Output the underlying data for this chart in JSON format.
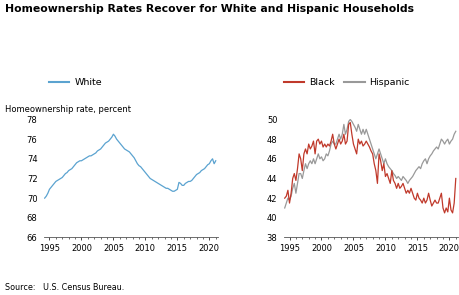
{
  "title": "Homeownership Rates Recover for White and Hispanic Households",
  "ylabel": "Homeownership rate, percent",
  "source": "Source:   U.S. Census Bureau.",
  "white_color": "#5BA3D0",
  "black_color": "#C0392B",
  "hispanic_color": "#999999",
  "left_ylim": [
    66,
    78
  ],
  "right_ylim": [
    38,
    50
  ],
  "left_yticks": [
    66,
    68,
    70,
    72,
    74,
    76,
    78
  ],
  "right_yticks": [
    38,
    40,
    42,
    44,
    46,
    48,
    50
  ],
  "xticks": [
    1995,
    2000,
    2005,
    2010,
    2015,
    2020
  ],
  "white_data": {
    "years": [
      1994.25,
      1994.5,
      1994.75,
      1995.0,
      1995.25,
      1995.5,
      1995.75,
      1996.0,
      1996.25,
      1996.5,
      1996.75,
      1997.0,
      1997.25,
      1997.5,
      1997.75,
      1998.0,
      1998.25,
      1998.5,
      1998.75,
      1999.0,
      1999.25,
      1999.5,
      1999.75,
      2000.0,
      2000.25,
      2000.5,
      2000.75,
      2001.0,
      2001.25,
      2001.5,
      2001.75,
      2002.0,
      2002.25,
      2002.5,
      2002.75,
      2003.0,
      2003.25,
      2003.5,
      2003.75,
      2004.0,
      2004.25,
      2004.5,
      2004.75,
      2005.0,
      2005.25,
      2005.5,
      2005.75,
      2006.0,
      2006.25,
      2006.5,
      2006.75,
      2007.0,
      2007.25,
      2007.5,
      2007.75,
      2008.0,
      2008.25,
      2008.5,
      2008.75,
      2009.0,
      2009.25,
      2009.5,
      2009.75,
      2010.0,
      2010.25,
      2010.5,
      2010.75,
      2011.0,
      2011.25,
      2011.5,
      2011.75,
      2012.0,
      2012.25,
      2012.5,
      2012.75,
      2013.0,
      2013.25,
      2013.5,
      2013.75,
      2014.0,
      2014.25,
      2014.5,
      2014.75,
      2015.0,
      2015.25,
      2015.5,
      2015.75,
      2016.0,
      2016.25,
      2016.5,
      2016.75,
      2017.0,
      2017.25,
      2017.5,
      2017.75,
      2018.0,
      2018.25,
      2018.5,
      2018.75,
      2019.0,
      2019.25,
      2019.5,
      2019.75,
      2020.0,
      2020.25,
      2020.5,
      2020.75,
      2021.0
    ],
    "values": [
      70.0,
      70.2,
      70.5,
      70.9,
      71.1,
      71.3,
      71.5,
      71.7,
      71.8,
      71.9,
      72.0,
      72.1,
      72.3,
      72.5,
      72.6,
      72.8,
      72.9,
      73.0,
      73.2,
      73.4,
      73.6,
      73.7,
      73.8,
      73.8,
      73.9,
      74.0,
      74.1,
      74.2,
      74.3,
      74.3,
      74.4,
      74.5,
      74.6,
      74.8,
      74.9,
      75.0,
      75.2,
      75.4,
      75.6,
      75.7,
      75.8,
      76.0,
      76.2,
      76.5,
      76.3,
      76.0,
      75.8,
      75.6,
      75.4,
      75.2,
      75.0,
      74.9,
      74.8,
      74.7,
      74.5,
      74.3,
      74.1,
      73.8,
      73.5,
      73.3,
      73.2,
      73.0,
      72.8,
      72.6,
      72.4,
      72.2,
      72.0,
      71.9,
      71.8,
      71.7,
      71.6,
      71.5,
      71.4,
      71.3,
      71.2,
      71.1,
      71.0,
      71.0,
      70.9,
      70.8,
      70.7,
      70.7,
      70.8,
      70.9,
      71.6,
      71.5,
      71.3,
      71.3,
      71.5,
      71.6,
      71.7,
      71.7,
      71.8,
      72.0,
      72.2,
      72.4,
      72.5,
      72.6,
      72.8,
      72.9,
      73.0,
      73.2,
      73.4,
      73.5,
      73.8,
      74.0,
      73.5,
      73.8
    ]
  },
  "black_data": {
    "years": [
      1994.25,
      1994.5,
      1994.75,
      1995.0,
      1995.25,
      1995.5,
      1995.75,
      1996.0,
      1996.25,
      1996.5,
      1996.75,
      1997.0,
      1997.25,
      1997.5,
      1997.75,
      1998.0,
      1998.25,
      1998.5,
      1998.75,
      1999.0,
      1999.25,
      1999.5,
      1999.75,
      2000.0,
      2000.25,
      2000.5,
      2000.75,
      2001.0,
      2001.25,
      2001.5,
      2001.75,
      2002.0,
      2002.25,
      2002.5,
      2002.75,
      2003.0,
      2003.25,
      2003.5,
      2003.75,
      2004.0,
      2004.25,
      2004.5,
      2004.75,
      2005.0,
      2005.25,
      2005.5,
      2005.75,
      2006.0,
      2006.25,
      2006.5,
      2006.75,
      2007.0,
      2007.25,
      2007.5,
      2007.75,
      2008.0,
      2008.25,
      2008.5,
      2008.75,
      2009.0,
      2009.25,
      2009.5,
      2009.75,
      2010.0,
      2010.25,
      2010.5,
      2010.75,
      2011.0,
      2011.25,
      2011.5,
      2011.75,
      2012.0,
      2012.25,
      2012.5,
      2012.75,
      2013.0,
      2013.25,
      2013.5,
      2013.75,
      2014.0,
      2014.25,
      2014.5,
      2014.75,
      2015.0,
      2015.25,
      2015.5,
      2015.75,
      2016.0,
      2016.25,
      2016.5,
      2016.75,
      2017.0,
      2017.25,
      2017.5,
      2017.75,
      2018.0,
      2018.25,
      2018.5,
      2018.75,
      2019.0,
      2019.25,
      2019.5,
      2019.75,
      2020.0,
      2020.25,
      2020.5,
      2020.75,
      2021.0
    ],
    "values": [
      42.0,
      42.2,
      42.8,
      41.5,
      42.5,
      44.0,
      44.5,
      43.8,
      45.0,
      46.5,
      46.0,
      44.8,
      46.5,
      47.0,
      46.5,
      47.5,
      47.0,
      47.3,
      47.8,
      46.5,
      47.8,
      48.0,
      47.5,
      47.8,
      47.2,
      47.5,
      47.2,
      47.5,
      47.3,
      47.8,
      48.5,
      47.5,
      47.0,
      47.5,
      48.0,
      47.5,
      47.8,
      48.5,
      47.5,
      47.8,
      49.5,
      49.7,
      48.5,
      47.5,
      47.0,
      46.5,
      48.0,
      47.5,
      47.8,
      47.3,
      47.5,
      47.8,
      47.5,
      47.2,
      46.8,
      46.5,
      45.5,
      44.8,
      43.5,
      46.5,
      45.8,
      44.8,
      45.5,
      44.2,
      44.5,
      44.0,
      43.5,
      44.8,
      43.8,
      43.5,
      43.0,
      43.5,
      43.0,
      43.2,
      43.5,
      43.0,
      42.5,
      42.8,
      42.5,
      43.0,
      42.5,
      42.0,
      41.8,
      42.5,
      42.0,
      41.8,
      41.5,
      42.0,
      41.5,
      41.8,
      42.5,
      41.8,
      41.2,
      41.5,
      41.8,
      41.5,
      41.5,
      42.0,
      42.5,
      41.0,
      40.5,
      41.0,
      40.6,
      42.0,
      40.8,
      40.5,
      41.5,
      44.0
    ]
  },
  "hispanic_data": {
    "years": [
      1994.25,
      1994.5,
      1994.75,
      1995.0,
      1995.25,
      1995.5,
      1995.75,
      1996.0,
      1996.25,
      1996.5,
      1996.75,
      1997.0,
      1997.25,
      1997.5,
      1997.75,
      1998.0,
      1998.25,
      1998.5,
      1998.75,
      1999.0,
      1999.25,
      1999.5,
      1999.75,
      2000.0,
      2000.25,
      2000.5,
      2000.75,
      2001.0,
      2001.25,
      2001.5,
      2001.75,
      2002.0,
      2002.25,
      2002.5,
      2002.75,
      2003.0,
      2003.25,
      2003.5,
      2003.75,
      2004.0,
      2004.25,
      2004.5,
      2004.75,
      2005.0,
      2005.25,
      2005.5,
      2005.75,
      2006.0,
      2006.25,
      2006.5,
      2006.75,
      2007.0,
      2007.25,
      2007.5,
      2007.75,
      2008.0,
      2008.25,
      2008.5,
      2008.75,
      2009.0,
      2009.25,
      2009.5,
      2009.75,
      2010.0,
      2010.25,
      2010.5,
      2010.75,
      2011.0,
      2011.25,
      2011.5,
      2011.75,
      2012.0,
      2012.25,
      2012.5,
      2012.75,
      2013.0,
      2013.25,
      2013.5,
      2013.75,
      2014.0,
      2014.25,
      2014.5,
      2014.75,
      2015.0,
      2015.25,
      2015.5,
      2015.75,
      2016.0,
      2016.25,
      2016.5,
      2016.75,
      2017.0,
      2017.25,
      2017.5,
      2017.75,
      2018.0,
      2018.25,
      2018.5,
      2018.75,
      2019.0,
      2019.25,
      2019.5,
      2019.75,
      2020.0,
      2020.25,
      2020.5,
      2020.75,
      2021.0
    ],
    "values": [
      41.0,
      41.5,
      42.0,
      41.8,
      42.2,
      43.0,
      43.5,
      42.5,
      43.5,
      44.5,
      44.5,
      44.0,
      44.8,
      45.5,
      45.0,
      45.5,
      45.8,
      45.5,
      46.0,
      45.5,
      46.0,
      46.5,
      46.0,
      46.2,
      45.8,
      46.0,
      46.5,
      46.3,
      46.8,
      47.5,
      47.8,
      47.5,
      47.5,
      48.0,
      48.5,
      48.0,
      48.5,
      49.5,
      48.5,
      49.0,
      49.8,
      50.0,
      49.8,
      49.5,
      49.2,
      48.8,
      49.5,
      49.0,
      48.5,
      49.0,
      48.5,
      49.0,
      48.5,
      48.0,
      47.5,
      47.0,
      46.5,
      46.0,
      46.5,
      47.0,
      46.5,
      46.0,
      45.5,
      46.0,
      45.5,
      45.2,
      45.0,
      44.8,
      44.5,
      44.3,
      44.0,
      44.2,
      44.0,
      43.8,
      44.2,
      44.0,
      43.8,
      43.5,
      43.8,
      44.0,
      44.2,
      44.5,
      44.8,
      45.0,
      45.2,
      45.0,
      45.5,
      45.8,
      46.0,
      45.5,
      46.0,
      46.3,
      46.5,
      46.8,
      47.0,
      47.2,
      47.0,
      47.5,
      48.0,
      47.8,
      47.5,
      47.8,
      48.0,
      47.5,
      47.8,
      48.0,
      48.5,
      48.8
    ]
  }
}
